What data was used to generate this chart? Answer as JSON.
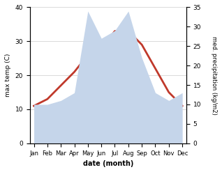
{
  "months": [
    "Jan",
    "Feb",
    "Mar",
    "Apr",
    "May",
    "Jun",
    "Jul",
    "Aug",
    "Sep",
    "Oct",
    "Nov",
    "Dec"
  ],
  "temp": [
    11,
    13,
    17,
    21,
    26,
    28,
    33,
    33,
    29,
    22,
    15,
    11
  ],
  "precip": [
    10,
    10,
    11,
    13,
    34,
    27,
    29,
    34,
    22,
    13,
    11,
    13
  ],
  "temp_color": "#c0392b",
  "precip_color": "#c5d5ea",
  "ylim_temp": [
    0,
    40
  ],
  "ylim_precip": [
    0,
    35
  ],
  "ylabel_left": "max temp (C)",
  "ylabel_right": "med. precipitation (kg/m2)",
  "xlabel": "date (month)",
  "background_color": "#ffffff",
  "temp_linewidth": 2.0
}
